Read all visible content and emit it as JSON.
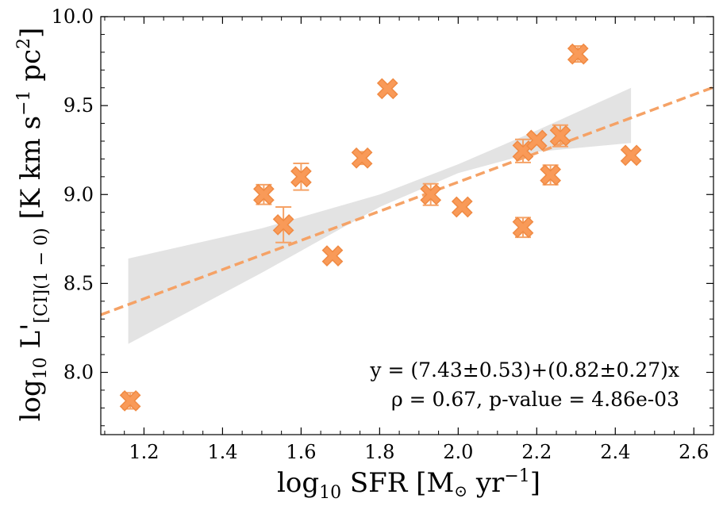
{
  "chart_data": {
    "type": "scatter",
    "xlabel_main": "log",
    "xlabel_sub": "10",
    "xlabel_rest": " SFR [M",
    "xlabel_sun": "⊙",
    "xlabel_unit": " yr",
    "xlabel_sup": "−1",
    "xlabel_end": "]",
    "ylabel_main": "log",
    "ylabel_sub": "10",
    "ylabel_L": " L'",
    "ylabel_lsub": "[CI](1 − 0)",
    "ylabel_rest": " [K km s",
    "ylabel_sup1": "−1",
    "ylabel_pc": " pc",
    "ylabel_sup2": "2",
    "ylabel_end": "]",
    "xlim": [
      1.09,
      2.65
    ],
    "ylim": [
      7.65,
      10.0
    ],
    "xticks": [
      "1.2",
      "1.4",
      "1.6",
      "1.8",
      "2.0",
      "2.2",
      "2.4",
      "2.6"
    ],
    "xtick_values": [
      1.2,
      1.4,
      1.6,
      1.8,
      2.0,
      2.2,
      2.4,
      2.6
    ],
    "yticks": [
      "8.0",
      "8.5",
      "9.0",
      "9.5",
      "10.0"
    ],
    "ytick_values": [
      8.0,
      8.5,
      9.0,
      9.5,
      10.0
    ],
    "points": [
      {
        "x": 1.165,
        "y": 7.84,
        "err": 0.045
      },
      {
        "x": 1.505,
        "y": 9.0,
        "err": 0.055
      },
      {
        "x": 1.555,
        "y": 8.83,
        "err": 0.1
      },
      {
        "x": 1.6,
        "y": 9.1,
        "err": 0.075
      },
      {
        "x": 1.68,
        "y": 8.655,
        "err": 0.02
      },
      {
        "x": 1.755,
        "y": 9.205,
        "err": 0.035
      },
      {
        "x": 1.82,
        "y": 9.595,
        "err": 0.025
      },
      {
        "x": 1.93,
        "y": 9.0,
        "err": 0.06
      },
      {
        "x": 2.01,
        "y": 8.93,
        "err": 0.02
      },
      {
        "x": 2.165,
        "y": 8.815,
        "err": 0.055
      },
      {
        "x": 2.165,
        "y": 9.245,
        "err": 0.065
      },
      {
        "x": 2.2,
        "y": 9.305,
        "err": 0.025
      },
      {
        "x": 2.235,
        "y": 9.11,
        "err": 0.055
      },
      {
        "x": 2.26,
        "y": 9.33,
        "err": 0.06
      },
      {
        "x": 2.305,
        "y": 9.79,
        "err": 0.045
      },
      {
        "x": 2.44,
        "y": 9.22,
        "err": 0.025
      }
    ],
    "fit": {
      "intercept": 7.43,
      "slope": 0.82
    },
    "band": {
      "x": [
        1.16,
        1.5,
        1.8,
        2.0,
        2.2,
        2.44
      ],
      "lower": [
        8.16,
        8.56,
        8.93,
        9.12,
        9.24,
        9.29
      ],
      "upper": [
        8.64,
        8.81,
        9.0,
        9.17,
        9.36,
        9.6
      ]
    },
    "annotation_line1": "y = (7.43±0.53)+(0.82±0.27)x",
    "annotation_line2": "ρ = 0.67, p-value = 4.86e-03",
    "colors": {
      "marker_fill": "#f99a58",
      "marker_edge": "#f08a43",
      "errorbar": "#f5a266",
      "fit_line": "#f5a266",
      "band": "#e3e3e3"
    },
    "grid": false,
    "legend": "none"
  }
}
